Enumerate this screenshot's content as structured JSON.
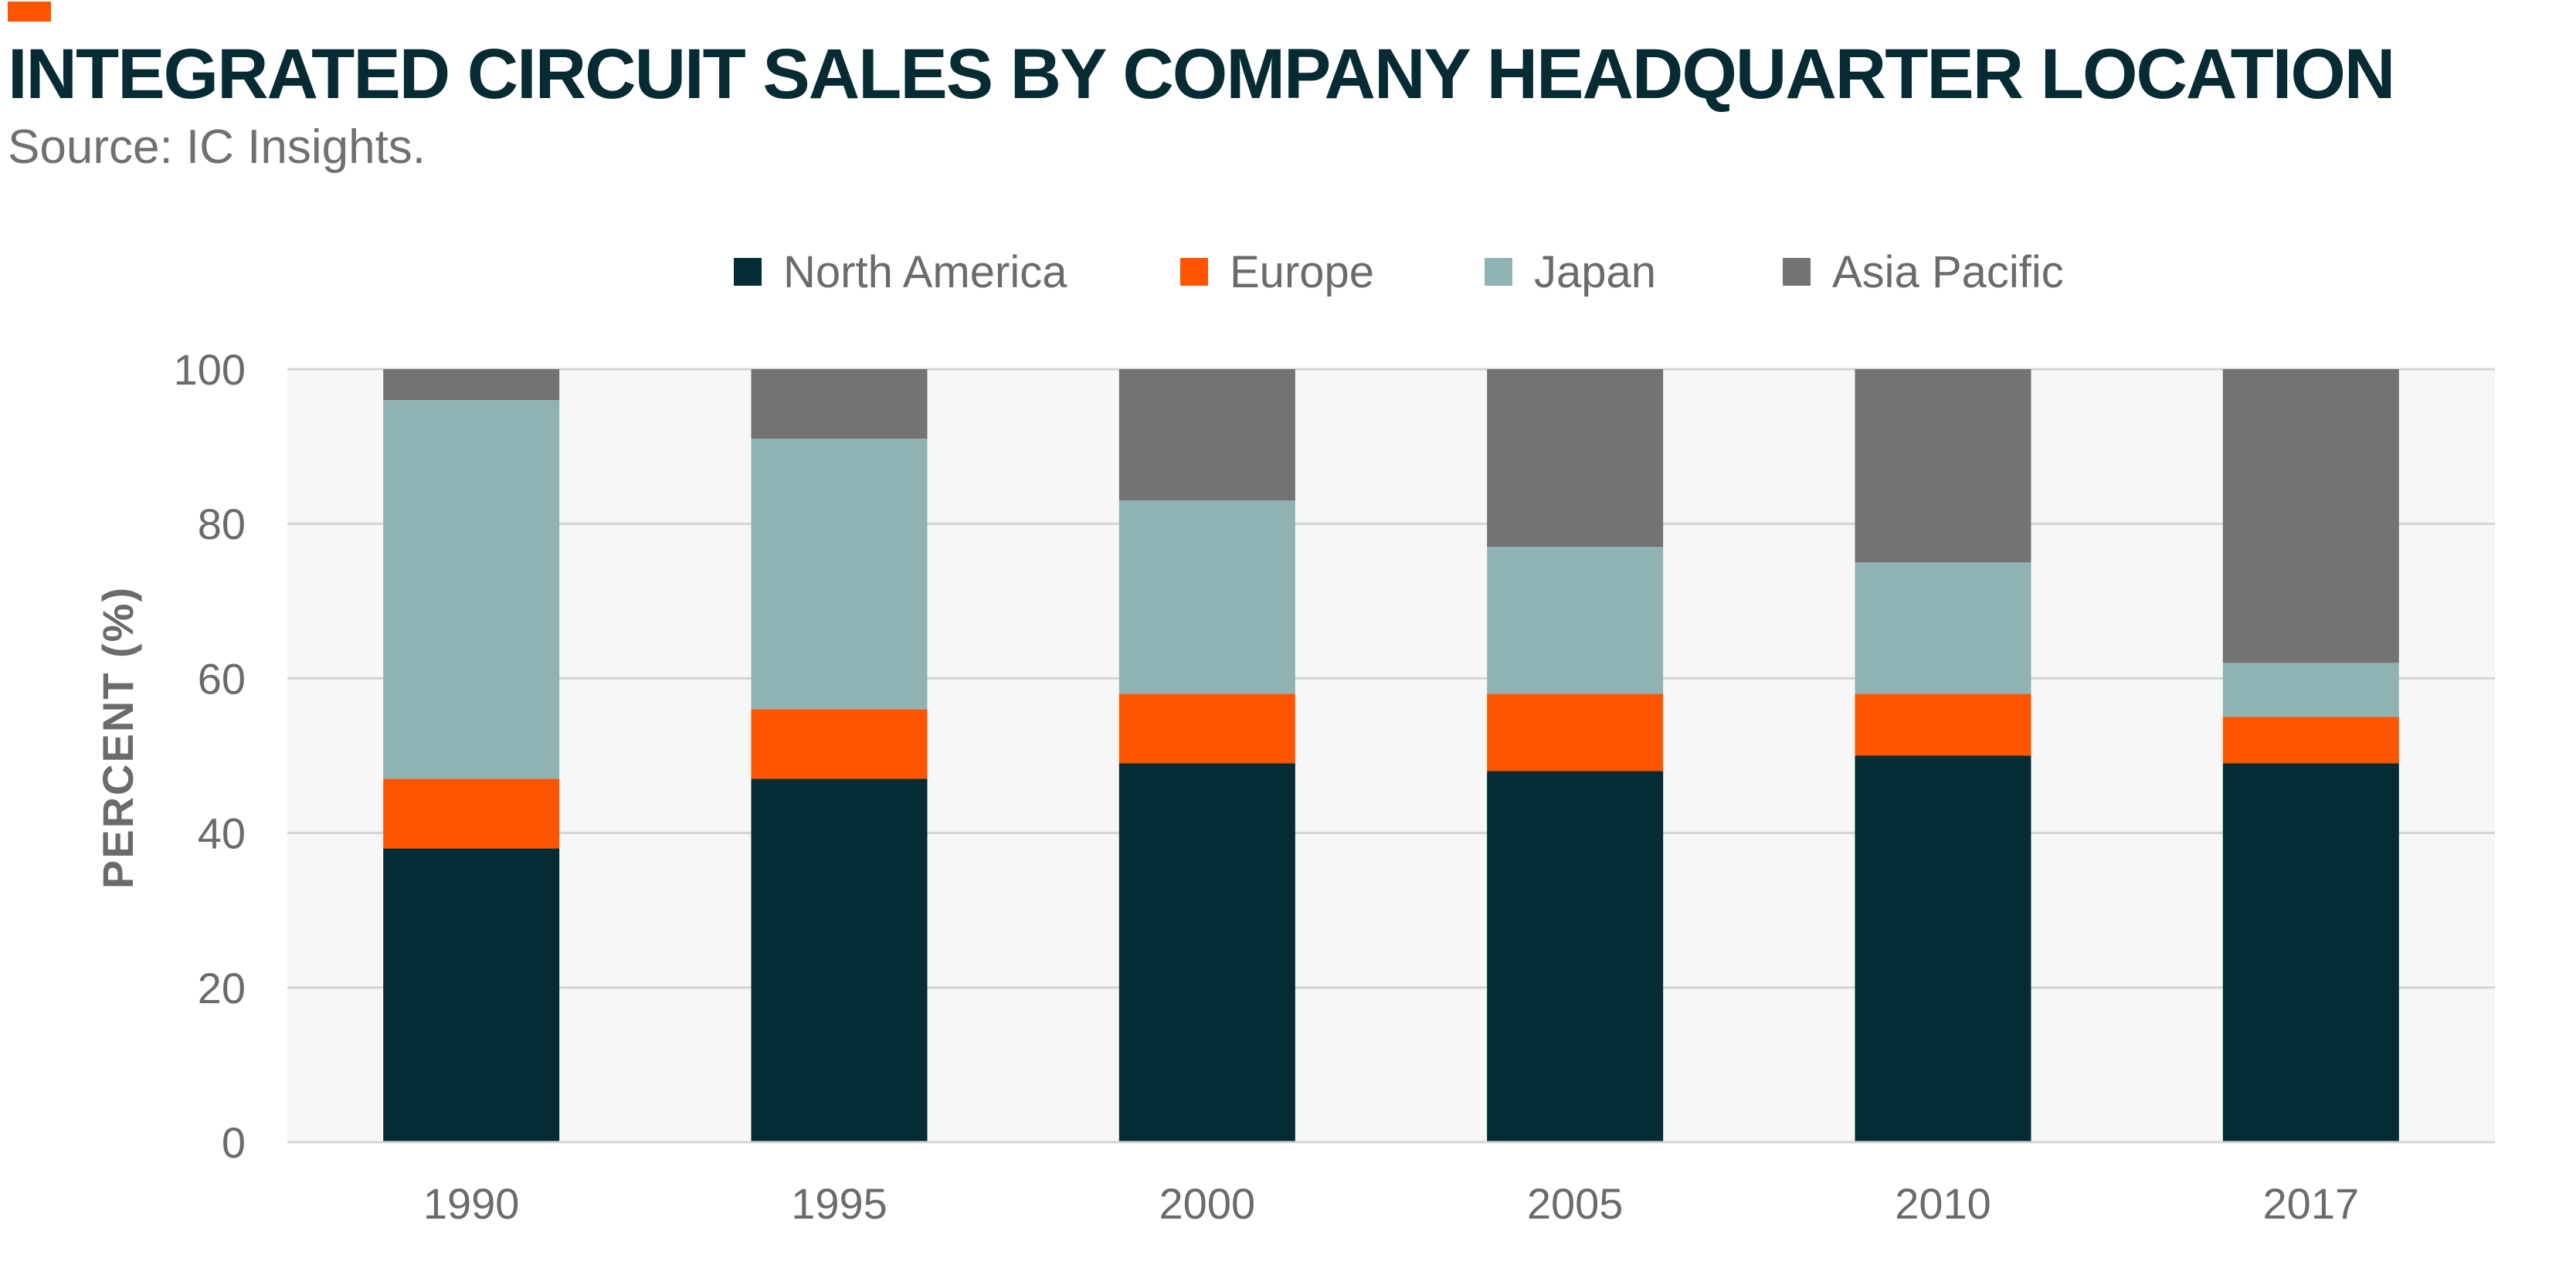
{
  "header": {
    "title": "INTEGRATED CIRCUIT SALES BY COMPANY HEADQUARTER LOCATION",
    "subtitle": "Source: IC Insights."
  },
  "colors": {
    "accent": "#ff5500",
    "north_america": "#032c35",
    "europe": "#ff5500",
    "japan": "#8fb3b2",
    "asia_pacific": "#737373",
    "plot_background": "#f7f7f7",
    "grid": "#d4d4d4",
    "tick_text": "#6b6b6b"
  },
  "chart_data": {
    "type": "bar",
    "stacked": true,
    "title": "INTEGRATED CIRCUIT SALES BY COMPANY HEADQUARTER LOCATION",
    "subtitle": "Source: IC Insights.",
    "xlabel": "",
    "ylabel": "PERCENT (%)",
    "ylim": [
      0,
      100
    ],
    "yticks": [
      0,
      20,
      40,
      60,
      80,
      100
    ],
    "grid": true,
    "legend_position": "top-center",
    "categories": [
      "1990",
      "1995",
      "2000",
      "2005",
      "2010",
      "2017"
    ],
    "series": [
      {
        "name": "North America",
        "color": "#032c35",
        "values": [
          38,
          47,
          49,
          48,
          50,
          49
        ]
      },
      {
        "name": "Europe",
        "color": "#ff5500",
        "values": [
          9,
          9,
          9,
          10,
          8,
          6
        ]
      },
      {
        "name": "Japan",
        "color": "#8fb3b2",
        "values": [
          49,
          35,
          25,
          19,
          17,
          7
        ]
      },
      {
        "name": "Asia Pacific",
        "color": "#737373",
        "values": [
          4,
          9,
          17,
          23,
          25,
          38
        ]
      }
    ]
  }
}
